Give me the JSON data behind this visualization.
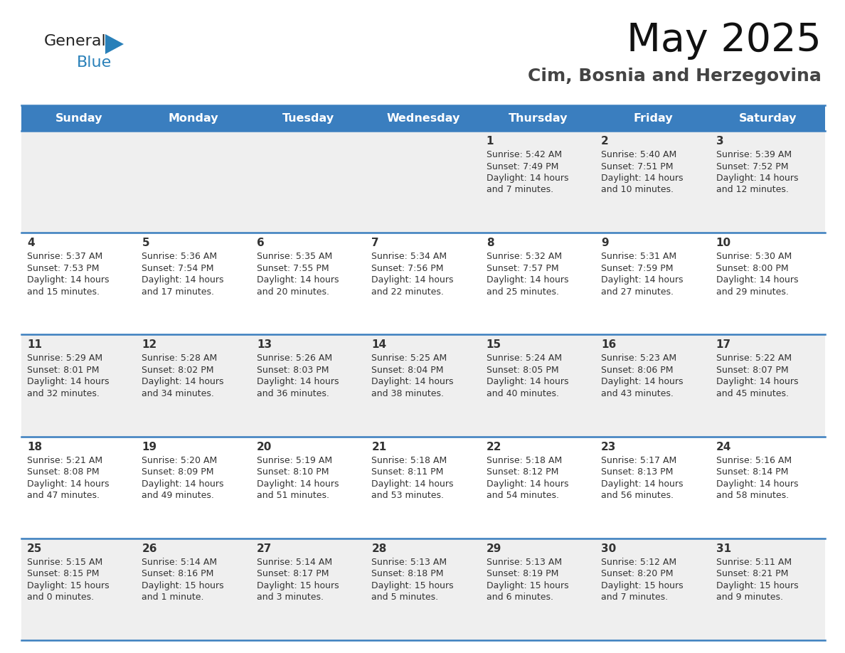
{
  "title": "May 2025",
  "subtitle": "Cim, Bosnia and Herzegovina",
  "header_color": "#3A7EBF",
  "header_text_color": "#FFFFFF",
  "cell_bg_even": "#EFEFEF",
  "cell_bg_odd": "#FFFFFF",
  "border_color": "#3A7EBF",
  "text_color": "#333333",
  "days_of_week": [
    "Sunday",
    "Monday",
    "Tuesday",
    "Wednesday",
    "Thursday",
    "Friday",
    "Saturday"
  ],
  "weeks": [
    [
      {
        "day": "",
        "sunrise": "",
        "sunset": "",
        "daylight_h": "",
        "daylight_m": ""
      },
      {
        "day": "",
        "sunrise": "",
        "sunset": "",
        "daylight_h": "",
        "daylight_m": ""
      },
      {
        "day": "",
        "sunrise": "",
        "sunset": "",
        "daylight_h": "",
        "daylight_m": ""
      },
      {
        "day": "",
        "sunrise": "",
        "sunset": "",
        "daylight_h": "",
        "daylight_m": ""
      },
      {
        "day": "1",
        "sunrise": "5:42 AM",
        "sunset": "7:49 PM",
        "daylight_h": "14",
        "daylight_m": "7 minutes."
      },
      {
        "day": "2",
        "sunrise": "5:40 AM",
        "sunset": "7:51 PM",
        "daylight_h": "14",
        "daylight_m": "10 minutes."
      },
      {
        "day": "3",
        "sunrise": "5:39 AM",
        "sunset": "7:52 PM",
        "daylight_h": "14",
        "daylight_m": "12 minutes."
      }
    ],
    [
      {
        "day": "4",
        "sunrise": "5:37 AM",
        "sunset": "7:53 PM",
        "daylight_h": "14",
        "daylight_m": "15 minutes."
      },
      {
        "day": "5",
        "sunrise": "5:36 AM",
        "sunset": "7:54 PM",
        "daylight_h": "14",
        "daylight_m": "17 minutes."
      },
      {
        "day": "6",
        "sunrise": "5:35 AM",
        "sunset": "7:55 PM",
        "daylight_h": "14",
        "daylight_m": "20 minutes."
      },
      {
        "day": "7",
        "sunrise": "5:34 AM",
        "sunset": "7:56 PM",
        "daylight_h": "14",
        "daylight_m": "22 minutes."
      },
      {
        "day": "8",
        "sunrise": "5:32 AM",
        "sunset": "7:57 PM",
        "daylight_h": "14",
        "daylight_m": "25 minutes."
      },
      {
        "day": "9",
        "sunrise": "5:31 AM",
        "sunset": "7:59 PM",
        "daylight_h": "14",
        "daylight_m": "27 minutes."
      },
      {
        "day": "10",
        "sunrise": "5:30 AM",
        "sunset": "8:00 PM",
        "daylight_h": "14",
        "daylight_m": "29 minutes."
      }
    ],
    [
      {
        "day": "11",
        "sunrise": "5:29 AM",
        "sunset": "8:01 PM",
        "daylight_h": "14",
        "daylight_m": "32 minutes."
      },
      {
        "day": "12",
        "sunrise": "5:28 AM",
        "sunset": "8:02 PM",
        "daylight_h": "14",
        "daylight_m": "34 minutes."
      },
      {
        "day": "13",
        "sunrise": "5:26 AM",
        "sunset": "8:03 PM",
        "daylight_h": "14",
        "daylight_m": "36 minutes."
      },
      {
        "day": "14",
        "sunrise": "5:25 AM",
        "sunset": "8:04 PM",
        "daylight_h": "14",
        "daylight_m": "38 minutes."
      },
      {
        "day": "15",
        "sunrise": "5:24 AM",
        "sunset": "8:05 PM",
        "daylight_h": "14",
        "daylight_m": "40 minutes."
      },
      {
        "day": "16",
        "sunrise": "5:23 AM",
        "sunset": "8:06 PM",
        "daylight_h": "14",
        "daylight_m": "43 minutes."
      },
      {
        "day": "17",
        "sunrise": "5:22 AM",
        "sunset": "8:07 PM",
        "daylight_h": "14",
        "daylight_m": "45 minutes."
      }
    ],
    [
      {
        "day": "18",
        "sunrise": "5:21 AM",
        "sunset": "8:08 PM",
        "daylight_h": "14",
        "daylight_m": "47 minutes."
      },
      {
        "day": "19",
        "sunrise": "5:20 AM",
        "sunset": "8:09 PM",
        "daylight_h": "14",
        "daylight_m": "49 minutes."
      },
      {
        "day": "20",
        "sunrise": "5:19 AM",
        "sunset": "8:10 PM",
        "daylight_h": "14",
        "daylight_m": "51 minutes."
      },
      {
        "day": "21",
        "sunrise": "5:18 AM",
        "sunset": "8:11 PM",
        "daylight_h": "14",
        "daylight_m": "53 minutes."
      },
      {
        "day": "22",
        "sunrise": "5:18 AM",
        "sunset": "8:12 PM",
        "daylight_h": "14",
        "daylight_m": "54 minutes."
      },
      {
        "day": "23",
        "sunrise": "5:17 AM",
        "sunset": "8:13 PM",
        "daylight_h": "14",
        "daylight_m": "56 minutes."
      },
      {
        "day": "24",
        "sunrise": "5:16 AM",
        "sunset": "8:14 PM",
        "daylight_h": "14",
        "daylight_m": "58 minutes."
      }
    ],
    [
      {
        "day": "25",
        "sunrise": "5:15 AM",
        "sunset": "8:15 PM",
        "daylight_h": "15",
        "daylight_m": "0 minutes."
      },
      {
        "day": "26",
        "sunrise": "5:14 AM",
        "sunset": "8:16 PM",
        "daylight_h": "15",
        "daylight_m": "1 minute."
      },
      {
        "day": "27",
        "sunrise": "5:14 AM",
        "sunset": "8:17 PM",
        "daylight_h": "15",
        "daylight_m": "3 minutes."
      },
      {
        "day": "28",
        "sunrise": "5:13 AM",
        "sunset": "8:18 PM",
        "daylight_h": "15",
        "daylight_m": "5 minutes."
      },
      {
        "day": "29",
        "sunrise": "5:13 AM",
        "sunset": "8:19 PM",
        "daylight_h": "15",
        "daylight_m": "6 minutes."
      },
      {
        "day": "30",
        "sunrise": "5:12 AM",
        "sunset": "8:20 PM",
        "daylight_h": "15",
        "daylight_m": "7 minutes."
      },
      {
        "day": "31",
        "sunrise": "5:11 AM",
        "sunset": "8:21 PM",
        "daylight_h": "15",
        "daylight_m": "9 minutes."
      }
    ]
  ],
  "logo_text1": "General",
  "logo_text2": "Blue",
  "logo_color1": "#222222",
  "logo_color2": "#2980B9",
  "logo_triangle_color": "#2980B9"
}
